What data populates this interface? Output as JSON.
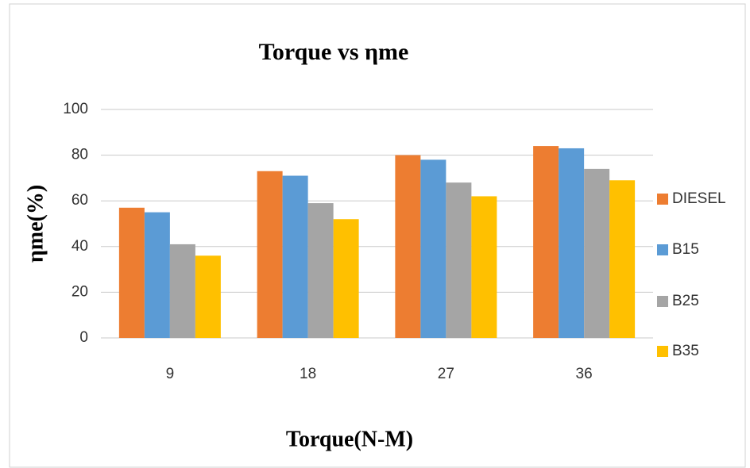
{
  "chart_data": {
    "type": "bar",
    "title": "Torque vs ηme",
    "x_label": "Torque(N-M)",
    "y_label": "ηme(%)",
    "categories": [
      "9",
      "18",
      "27",
      "36"
    ],
    "series": [
      {
        "name": "DIESEL",
        "color": "#ed7d31",
        "values": [
          57,
          73,
          80,
          84
        ]
      },
      {
        "name": "B15",
        "color": "#5b9bd5",
        "values": [
          55,
          71,
          78,
          83
        ]
      },
      {
        "name": "B25",
        "color": "#a5a5a5",
        "values": [
          41,
          59,
          68,
          74
        ]
      },
      {
        "name": "B35",
        "color": "#ffc000",
        "values": [
          36,
          52,
          62,
          69
        ]
      }
    ],
    "ylim": [
      0,
      100
    ],
    "yticks": [
      0,
      20,
      40,
      60,
      80,
      100
    ],
    "grid": true,
    "legend": "right"
  }
}
